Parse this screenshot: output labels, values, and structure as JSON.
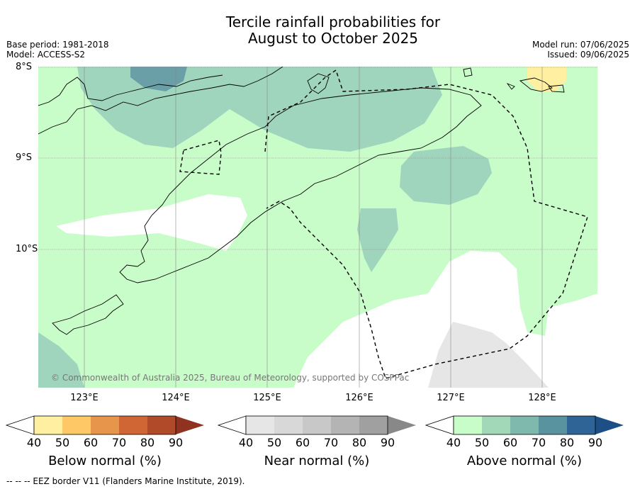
{
  "title_line1": "Tercile rainfall probabilities for",
  "title_line2": "August to October 2025",
  "base_period": "Base period: 1981-2018",
  "model": "Model: ACCESS-S2",
  "model_run": "Model run: 07/06/2025",
  "issued": "Issued: 09/06/2025",
  "lat_labels": [
    "8°S",
    "9°S",
    "10°S"
  ],
  "lon_labels": [
    "123°E",
    "124°E",
    "125°E",
    "126°E",
    "127°E",
    "128°E"
  ],
  "copyright": "© Commonwealth of Australia 2025, Bureau of Meteorology, supported by COSPPac",
  "colorbars": [
    {
      "label": "Below normal (%)",
      "ticks": [
        "40",
        "50",
        "60",
        "70",
        "80",
        "90"
      ],
      "colors": [
        "#fef0a0",
        "#fdc865",
        "#e6954a",
        "#d06634",
        "#b04a28",
        "#8f3320"
      ]
    },
    {
      "label": "Near normal (%)",
      "ticks": [
        "40",
        "50",
        "60",
        "70",
        "80",
        "90"
      ],
      "colors": [
        "#e6e6e6",
        "#d8d8d8",
        "#c8c8c8",
        "#b4b4b4",
        "#a0a0a0",
        "#888888"
      ]
    },
    {
      "label": "Above normal (%)",
      "ticks": [
        "40",
        "50",
        "60",
        "70",
        "80",
        "90"
      ],
      "colors": [
        "#c8fcc8",
        "#a2d7b8",
        "#7fb8ac",
        "#5a93a0",
        "#2e6496",
        "#1b4f85"
      ]
    }
  ],
  "footer": "--  --  -- EEZ border V11 (Flanders Marine Institute, 2019)."
}
